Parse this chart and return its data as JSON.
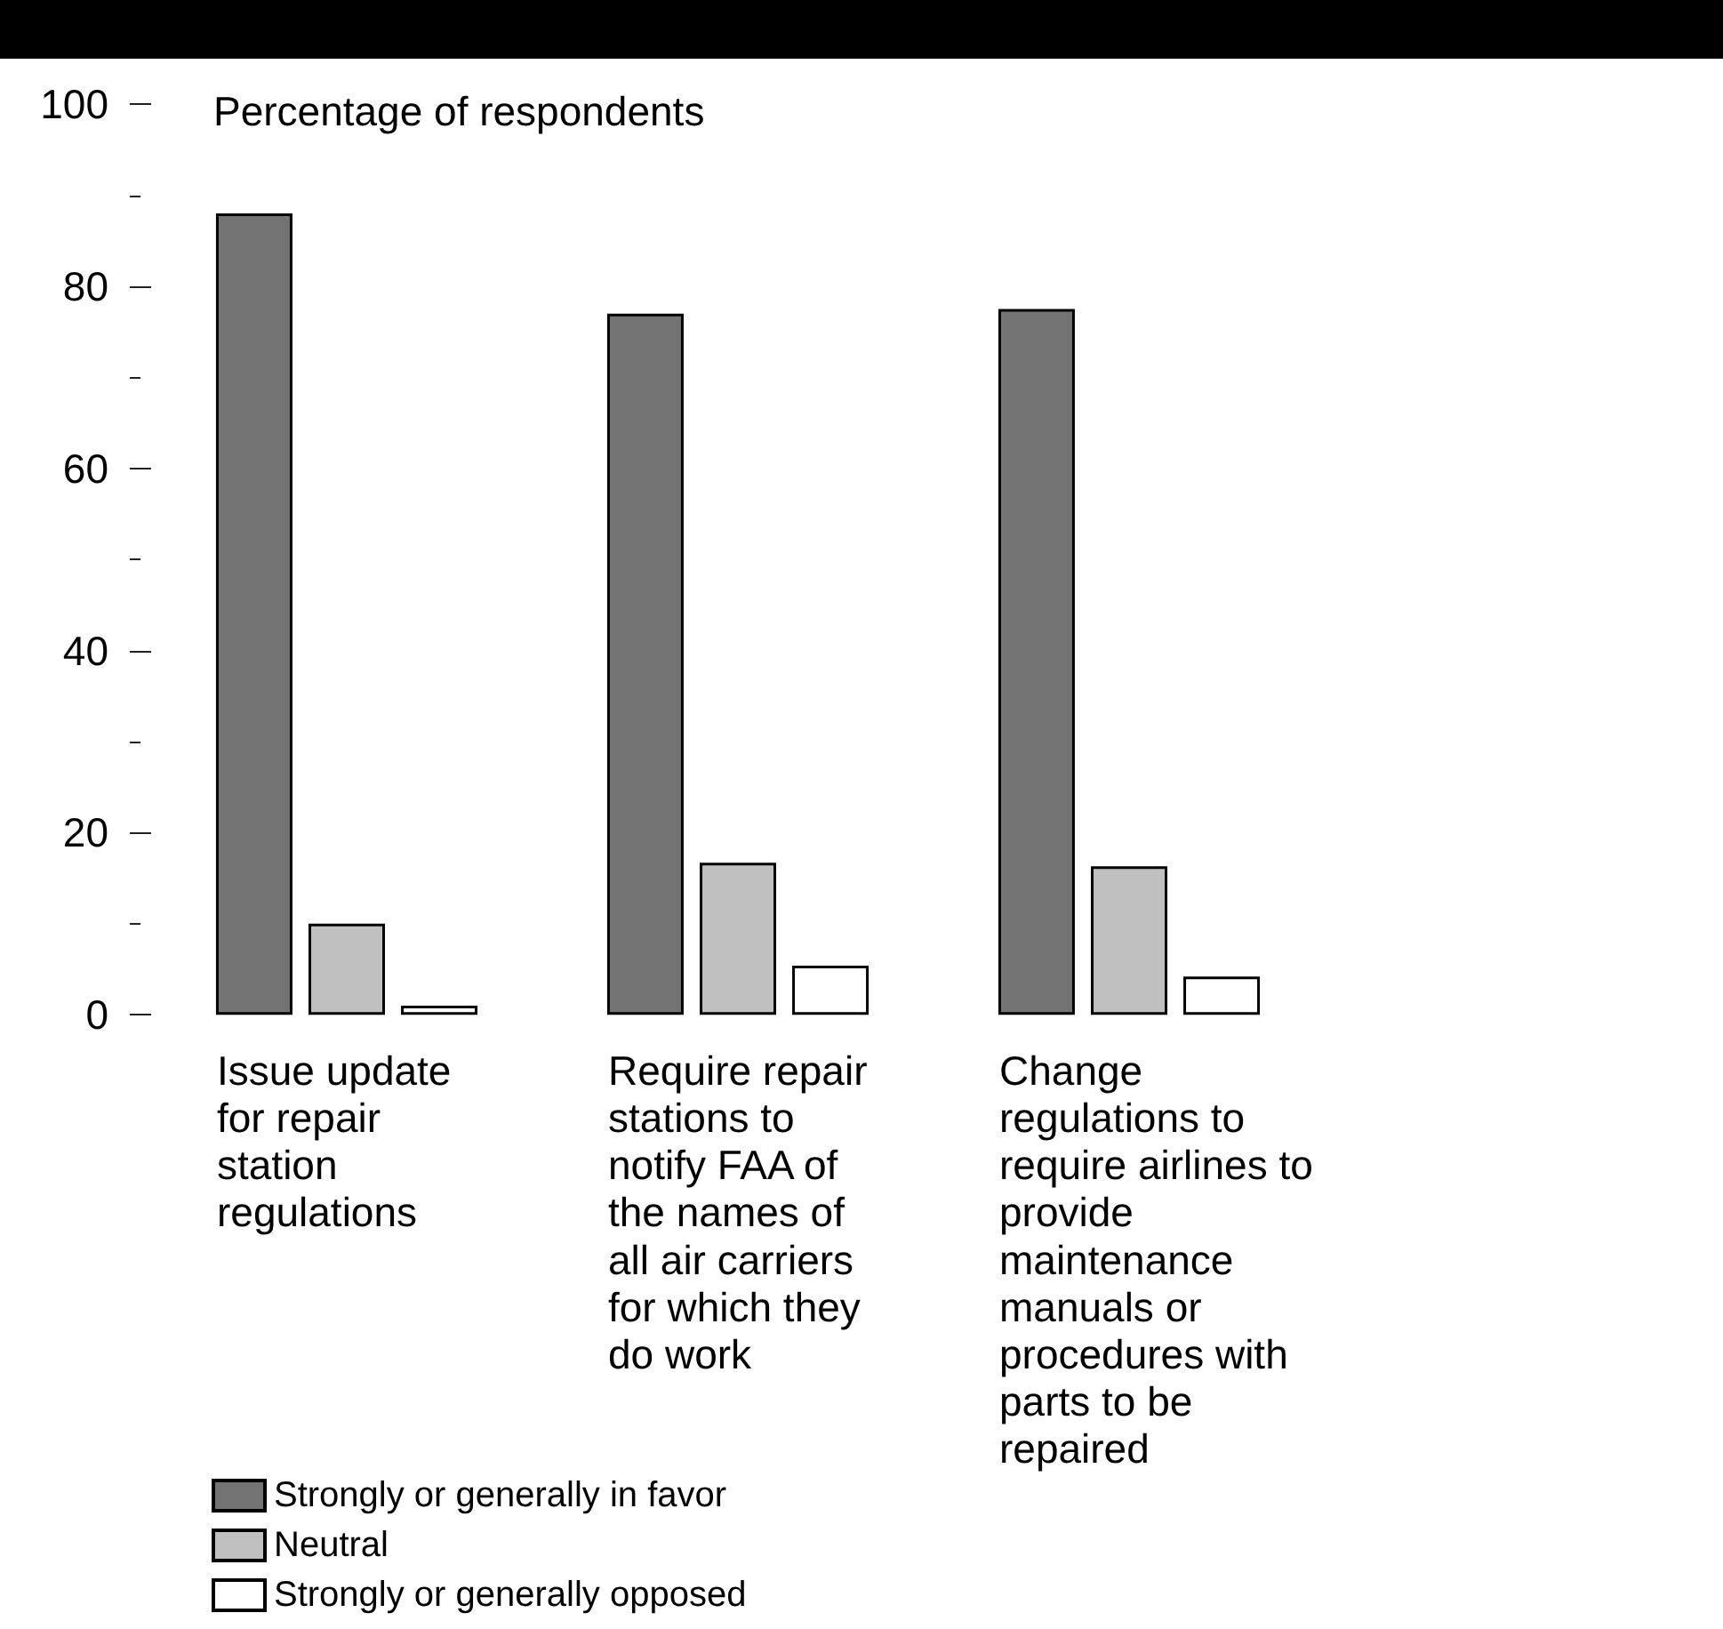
{
  "chart_data": {
    "type": "bar",
    "ylabel": "Percentage of respondents",
    "categories": [
      "Issue update for repair station regulations",
      "Require repair stations to notify FAA of the names of all air carriers for which they do work",
      "Change regulations to require airlines to provide maintenance manuals or procedures with parts to be repaired"
    ],
    "series": [
      {
        "name": "Strongly or generally in favor",
        "color": "#737373",
        "values": [
          88,
          77,
          77.5
        ]
      },
      {
        "name": "Neutral",
        "color": "#c0c0c0",
        "values": [
          10,
          16.7,
          16.3
        ]
      },
      {
        "name": "Strongly or generally opposed",
        "color": "#ffffff",
        "values": [
          1,
          5.4,
          4.2
        ]
      }
    ],
    "ylim": [
      0,
      100
    ],
    "yticks": [
      0,
      {
        "value": 10,
        "label": null
      },
      20,
      {
        "value": 30,
        "label": null
      },
      40,
      {
        "value": 50,
        "label": null
      },
      60,
      {
        "value": 70,
        "label": null
      },
      80,
      {
        "value": 90,
        "label": null
      },
      100
    ],
    "grid": false,
    "legend": "bottom left"
  }
}
